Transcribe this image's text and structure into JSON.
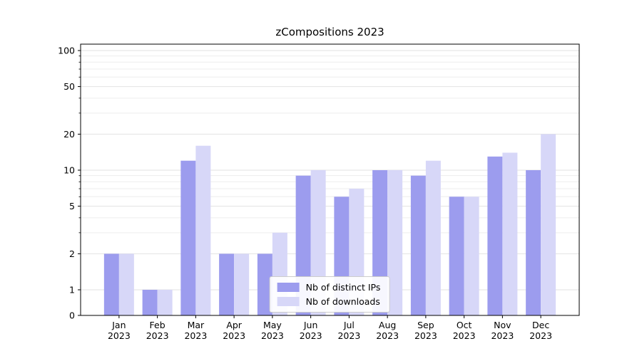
{
  "chart_data": {
    "type": "bar",
    "title": "zCompositions 2023",
    "categories": [
      "Jan",
      "Feb",
      "Mar",
      "Apr",
      "May",
      "Jun",
      "Jul",
      "Aug",
      "Sep",
      "Oct",
      "Nov",
      "Dec"
    ],
    "year_label": "2023",
    "series": [
      {
        "name": "Nb of distinct IPs",
        "color": "#9c9cee",
        "values": [
          2,
          1,
          12,
          2,
          2,
          9,
          6,
          10,
          9,
          6,
          13,
          10
        ]
      },
      {
        "name": "Nb of downloads",
        "color": "#d7d7f8",
        "values": [
          2,
          1,
          16,
          2,
          3,
          10,
          7,
          10,
          12,
          6,
          14,
          20
        ]
      }
    ],
    "y_scale": "symlog",
    "y_ticks": [
      0,
      1,
      2,
      5,
      10,
      20,
      50,
      100
    ],
    "y_minor_ticks": [
      3,
      4,
      6,
      7,
      8,
      9,
      30,
      40,
      60,
      70,
      80,
      90
    ],
    "ylim": [
      0,
      120
    ],
    "xlabel": "",
    "ylabel": "",
    "grid": "horizontal",
    "legend_position": "lower center",
    "grid_color": "#e8e8e8",
    "axis_color": "#000000"
  }
}
